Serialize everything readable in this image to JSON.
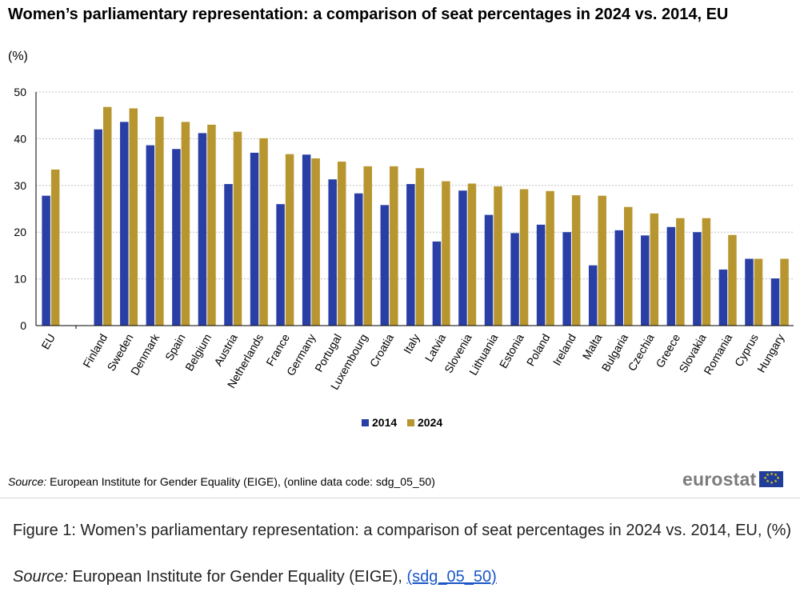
{
  "header": {
    "title": "Women’s parliamentary representation: a comparison of seat percentages in 2024 vs. 2014, EU",
    "unit": "(%)"
  },
  "chart_data": {
    "type": "bar",
    "title": "Women’s parliamentary representation: a comparison of seat percentages in 2024 vs. 2014, EU",
    "ylabel": "(%)",
    "xlabel": "",
    "ylim": [
      0,
      50
    ],
    "yticks": [
      0,
      10,
      20,
      30,
      40,
      50
    ],
    "grid": true,
    "legend_position": "bottom-center",
    "categories": [
      "EU",
      "Finland",
      "Sweden",
      "Denmark",
      "Spain",
      "Belgium",
      "Austria",
      "Netherlands",
      "France",
      "Germany",
      "Portugal",
      "Luxembourg",
      "Croatia",
      "Italy",
      "Latvia",
      "Slovenia",
      "Lithuania",
      "Estonia",
      "Poland",
      "Ireland",
      "Malta",
      "Bulgaria",
      "Czechia",
      "Greece",
      "Slovakia",
      "Romania",
      "Cyprus",
      "Hungary"
    ],
    "series": [
      {
        "name": "2014",
        "color": "#2a3fa6",
        "values": [
          27.8,
          42.0,
          43.6,
          38.6,
          37.8,
          41.2,
          30.3,
          37.0,
          26.0,
          36.6,
          31.3,
          28.3,
          25.8,
          30.3,
          18.0,
          28.9,
          23.7,
          19.8,
          21.6,
          20.0,
          12.9,
          20.4,
          19.3,
          21.1,
          20.0,
          12.0,
          14.3,
          10.1
        ]
      },
      {
        "name": "2024",
        "color": "#b8962f",
        "values": [
          33.4,
          46.8,
          46.5,
          44.7,
          43.6,
          43.0,
          41.5,
          40.1,
          36.7,
          35.8,
          35.1,
          34.1,
          34.1,
          33.7,
          30.9,
          30.4,
          29.8,
          29.2,
          28.8,
          27.9,
          27.8,
          25.4,
          24.0,
          23.0,
          23.0,
          19.4,
          14.3,
          14.3
        ]
      }
    ]
  },
  "source": {
    "label": "Source:",
    "text": " European Institute for Gender Equality (EIGE), (online data code: sdg_05_50)"
  },
  "logo": {
    "text": "eurostat"
  },
  "caption": {
    "text": "Figure 1: Women’s parliamentary representation: a comparison of seat percentages in 2024 vs. 2014, EU, (%)",
    "source_label": "Source:",
    "source_text": " European Institute for Gender Equality (EIGE), ",
    "link_text": "(sdg_05_50)"
  }
}
